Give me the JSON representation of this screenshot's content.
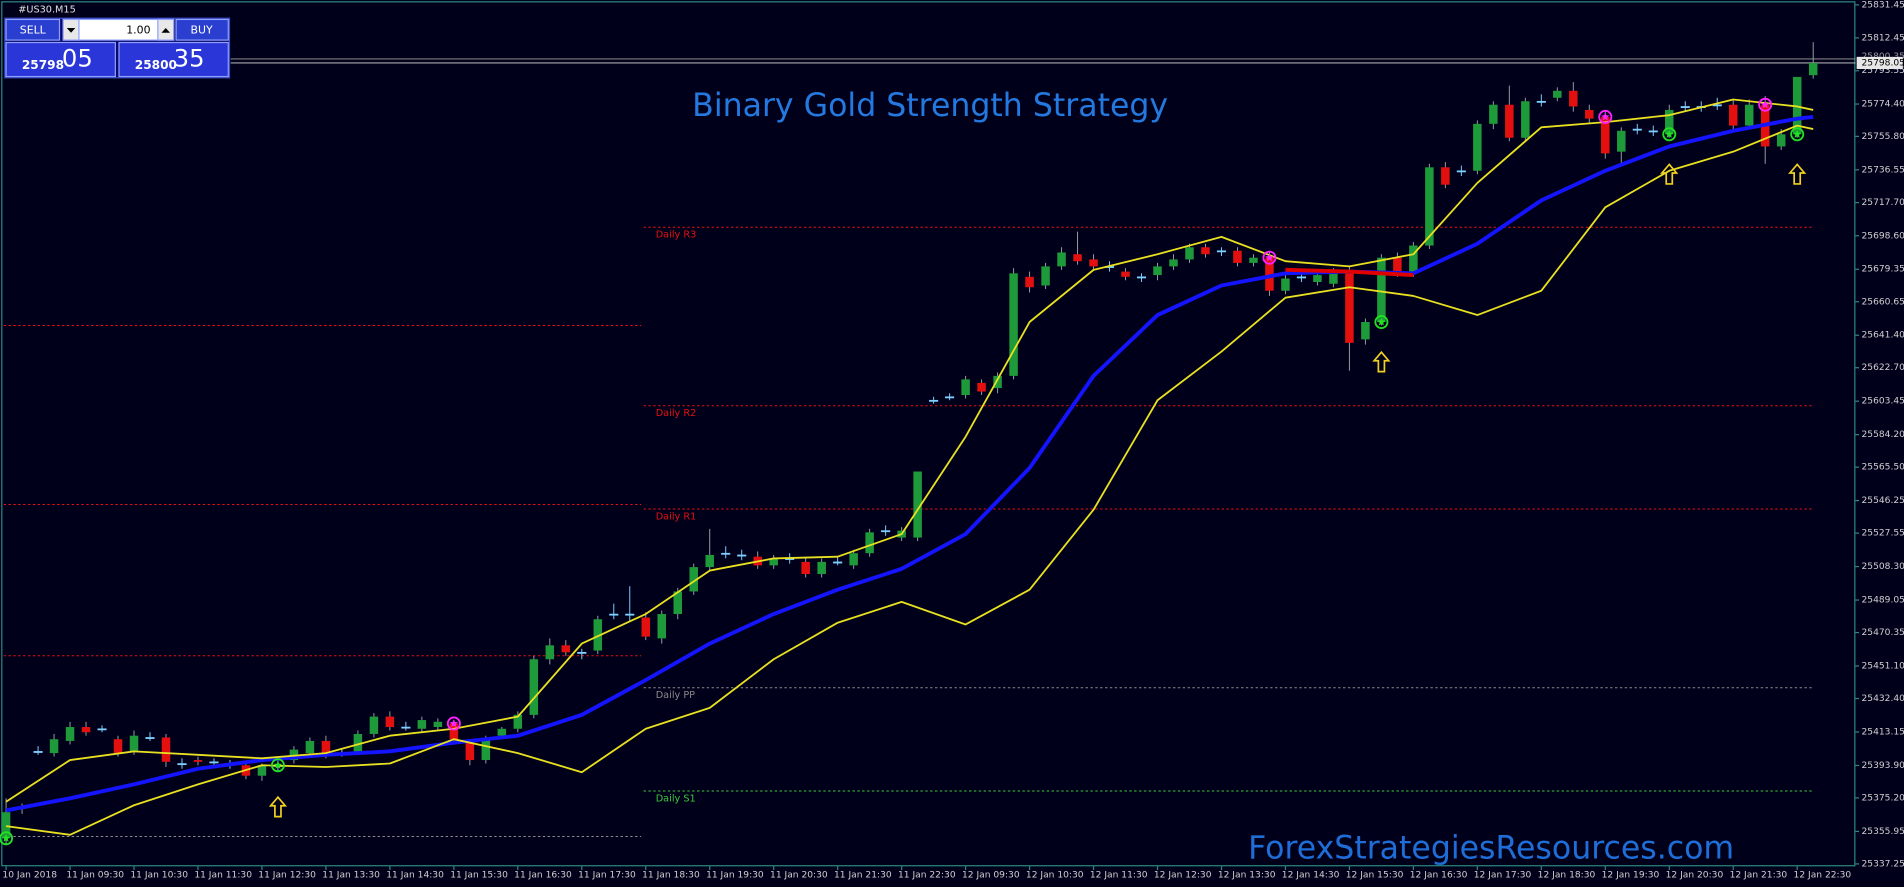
{
  "panel": {
    "symbol": "#US30.M15",
    "sell": "SELL",
    "lots": "1.00",
    "buy": "BUY",
    "bid_main": "25798",
    "bid_pips": "05",
    "ask_main": "25800",
    "ask_pips": "35"
  },
  "chart_data": {
    "type": "candlestick",
    "title": "Binary Gold Strength Strategy",
    "watermark": "ForexStrategiesResources.com",
    "categories": [
      "10 Jan 2018",
      null,
      null,
      null,
      "11 Jan 09:30",
      null,
      null,
      null,
      "11 Jan 10:30",
      null,
      null,
      null,
      "11 Jan 11:30",
      null,
      null,
      null,
      "11 Jan 12:30",
      null,
      null,
      null,
      "11 Jan 13:30",
      null,
      null,
      null,
      "11 Jan 14:30",
      null,
      null,
      null,
      "11 Jan 15:30",
      null,
      null,
      null,
      "11 Jan 16:30",
      null,
      null,
      null,
      "11 Jan 17:30",
      null,
      null,
      null,
      "11 Jan 18:30",
      null,
      null,
      null,
      "11 Jan 19:30",
      null,
      null,
      null,
      "11 Jan 20:30",
      null,
      null,
      null,
      "11 Jan 21:30",
      null,
      null,
      null,
      "11 Jan 22:30",
      null,
      null,
      null,
      "12 Jan 09:30",
      null,
      null,
      null,
      "12 Jan 10:30",
      null,
      null,
      null,
      "12 Jan 11:30",
      null,
      null,
      null,
      "12 Jan 12:30",
      null,
      null,
      null,
      "12 Jan 13:30",
      null,
      null,
      null,
      "12 Jan 14:30",
      null,
      null,
      null,
      "12 Jan 15:30",
      null,
      null,
      null,
      "12 Jan 16:30",
      null,
      null,
      null,
      "12 Jan 17:30",
      null,
      null,
      null,
      "12 Jan 18:30",
      null,
      null,
      null,
      "12 Jan 19:30",
      null,
      null,
      null,
      "12 Jan 20:30",
      null,
      null,
      null,
      "12 Jan 21:30",
      null,
      null,
      null,
      "12 Jan 22:30",
      null
    ],
    "ohlc": [
      [
        25352,
        25375,
        25348,
        25367
      ],
      [
        25369,
        25372,
        25366,
        25370
      ],
      [
        25402,
        25405,
        25400,
        25402
      ],
      [
        25401,
        25412,
        25399,
        25409
      ],
      [
        25408,
        25419,
        25406,
        25416
      ],
      [
        25416,
        25419,
        25411,
        25413
      ],
      [
        25415,
        25417,
        25413,
        25415
      ],
      [
        25409,
        25411,
        25399,
        25401
      ],
      [
        25402,
        25414,
        25400,
        25411
      ],
      [
        25410,
        25413,
        25408,
        25410
      ],
      [
        25410,
        25412,
        25393,
        25396
      ],
      [
        25395,
        25398,
        25392,
        25395
      ],
      [
        25397,
        25399,
        25394,
        25396
      ],
      [
        25396,
        25398,
        25393,
        25396
      ],
      [
        25395,
        25397,
        25392,
        25395
      ],
      [
        25394,
        25396,
        25386,
        25388
      ],
      [
        25388,
        25395,
        25385,
        25394
      ],
      [
        25394,
        25397,
        25391,
        25394
      ],
      [
        25397,
        25405,
        25395,
        25403
      ],
      [
        25401,
        25410,
        25399,
        25408
      ],
      [
        25408,
        25411,
        25398,
        25400
      ],
      [
        25401,
        25403,
        25399,
        25401
      ],
      [
        25402,
        25414,
        25400,
        25412
      ],
      [
        25412,
        25424,
        25410,
        25422
      ],
      [
        25422,
        25425,
        25414,
        25416
      ],
      [
        25416,
        25419,
        25414,
        25416
      ],
      [
        25415,
        25422,
        25413,
        25420
      ],
      [
        25416,
        25421,
        25414,
        25419
      ],
      [
        25418,
        25420,
        25407,
        25409
      ],
      [
        25407,
        25408,
        25394,
        25397
      ],
      [
        25397,
        25411,
        25395,
        25409
      ],
      [
        25411,
        25416,
        25409,
        25415
      ],
      [
        25415,
        25425,
        25413,
        25423
      ],
      [
        25423,
        25457,
        25421,
        25455
      ],
      [
        25455,
        25467,
        25452,
        25463
      ],
      [
        25463,
        25466,
        25457,
        25459
      ],
      [
        25459,
        25461,
        25455,
        25459
      ],
      [
        25460,
        25480,
        25458,
        25478
      ],
      [
        25481,
        25487,
        25478,
        25481
      ],
      [
        25481,
        25497,
        25477,
        25481
      ],
      [
        25479,
        25482,
        25466,
        25468
      ],
      [
        25467,
        25483,
        25464,
        25481
      ],
      [
        25481,
        25496,
        25478,
        25494
      ],
      [
        25494,
        25510,
        25492,
        25508
      ],
      [
        25508,
        25530,
        25506,
        25515
      ],
      [
        25516,
        25520,
        25513,
        25516
      ],
      [
        25515,
        25518,
        25512,
        25515
      ],
      [
        25514,
        25517,
        25507,
        25509
      ],
      [
        25509,
        25515,
        25507,
        25513
      ],
      [
        25513,
        25516,
        25510,
        25513
      ],
      [
        25511,
        25513,
        25502,
        25504
      ],
      [
        25504,
        25513,
        25502,
        25511
      ],
      [
        25511,
        25514,
        25509,
        25511
      ],
      [
        25509,
        25518,
        25507,
        25516
      ],
      [
        25516,
        25530,
        25514,
        25528
      ],
      [
        25529,
        25532,
        25526,
        25529
      ],
      [
        25525,
        25531,
        25523,
        25529
      ],
      [
        25525,
        25563,
        25523,
        25563
      ],
      [
        25604,
        25606,
        25602,
        25604
      ],
      [
        25606,
        25608,
        25604,
        25606
      ],
      [
        25607,
        25618,
        25605,
        25616
      ],
      [
        25614,
        25616,
        25607,
        25609
      ],
      [
        25611,
        25620,
        25608,
        25618
      ],
      [
        25618,
        25680,
        25616,
        25677
      ],
      [
        25675,
        25678,
        25666,
        25669
      ],
      [
        25670,
        25683,
        25668,
        25681
      ],
      [
        25681,
        25692,
        25679,
        25689
      ],
      [
        25688,
        25701,
        25682,
        25684
      ],
      [
        25685,
        25688,
        25679,
        25681
      ],
      [
        25681,
        25684,
        25678,
        25681
      ],
      [
        25678,
        25680,
        25673,
        25675
      ],
      [
        25675,
        25677,
        25672,
        25675
      ],
      [
        25676,
        25683,
        25673,
        25681
      ],
      [
        25681,
        25688,
        25679,
        25685
      ],
      [
        25685,
        25694,
        25683,
        25692
      ],
      [
        25692,
        25694,
        25686,
        25688
      ],
      [
        25690,
        25692,
        25687,
        25690
      ],
      [
        25690,
        25692,
        25681,
        25683
      ],
      [
        25683,
        25688,
        25681,
        25686
      ],
      [
        25686,
        25689,
        25664,
        25667
      ],
      [
        25667,
        25676,
        25665,
        25674
      ],
      [
        25675,
        25678,
        25672,
        25675
      ],
      [
        25672,
        25678,
        25670,
        25676
      ],
      [
        25671,
        25680,
        25669,
        25678
      ],
      [
        25679,
        25681,
        25621,
        25637
      ],
      [
        25639,
        25651,
        25636,
        25649
      ],
      [
        25649,
        25688,
        25647,
        25686
      ],
      [
        25686,
        25689,
        25675,
        25677
      ],
      [
        25677,
        25695,
        25675,
        25693
      ],
      [
        25693,
        25740,
        25691,
        25738
      ],
      [
        25738,
        25741,
        25726,
        25728
      ],
      [
        25736,
        25739,
        25733,
        25736
      ],
      [
        25736,
        25765,
        25734,
        25763
      ],
      [
        25763,
        25776,
        25760,
        25774
      ],
      [
        25774,
        25785,
        25753,
        25755
      ],
      [
        25755,
        25778,
        25753,
        25776
      ],
      [
        25776,
        25780,
        25773,
        25776
      ],
      [
        25778,
        25784,
        25776,
        25782
      ],
      [
        25782,
        25787,
        25770,
        25773
      ],
      [
        25771,
        25774,
        25763,
        25766
      ],
      [
        25767,
        25770,
        25743,
        25746
      ],
      [
        25747,
        25761,
        25740,
        25759
      ],
      [
        25760,
        25763,
        25757,
        25760
      ],
      [
        25759,
        25762,
        25756,
        25759
      ],
      [
        25757,
        25774,
        25755,
        25771
      ],
      [
        25773,
        25776,
        25770,
        25773
      ],
      [
        25773,
        25776,
        25770,
        25773
      ],
      [
        25774,
        25778,
        25771,
        25774
      ],
      [
        25774,
        25777,
        25759,
        25762
      ],
      [
        25762,
        25777,
        25760,
        25774
      ],
      [
        25774,
        25779,
        25740,
        25750
      ],
      [
        25750,
        25760,
        25748,
        25757
      ],
      [
        25757,
        25790,
        25755,
        25790
      ],
      [
        25791,
        25810,
        25789,
        25798
      ]
    ],
    "up_color": "#1e9a3a",
    "down_color": "#e41010",
    "doji_color": "#7fd0ff",
    "series": [
      {
        "color": "#1414ff",
        "x": [
          0,
          4,
          8,
          12,
          16,
          20,
          24,
          28,
          32,
          36,
          40,
          44,
          48,
          52,
          56,
          60,
          64,
          68,
          72,
          76,
          80,
          84,
          88,
          92,
          96,
          100,
          104,
          108,
          112,
          113
        ],
        "values": [
          25368,
          25375,
          25383,
          25392,
          25397,
          25400,
          25402,
          25407,
          25411,
          25423,
          25443,
          25464,
          25481,
          25495,
          25507,
          25527,
          25565,
          25618,
          25653,
          25670,
          25677,
          25678,
          25677,
          25694,
          25719,
          25736,
          25750,
          25759,
          25766,
          25767
        ]
      },
      {
        "color": "#e8e020",
        "x": [
          0,
          4,
          8,
          12,
          16,
          20,
          24,
          28,
          32,
          36,
          40,
          44,
          48,
          52,
          56,
          60,
          64,
          68,
          72,
          76,
          80,
          84,
          88,
          92,
          96,
          100,
          104,
          108,
          112,
          113
        ],
        "values": [
          25373,
          25397,
          25402,
          25400,
          25398,
          25401,
          25411,
          25415,
          25422,
          25464,
          25481,
          25506,
          25513,
          25514,
          25527,
          25583,
          25649,
          25679,
          25688,
          25698,
          25684,
          25681,
          25688,
          25729,
          25761,
          25764,
          25768,
          25777,
          25773,
          25771
        ]
      },
      {
        "color": "#e8e020",
        "x": [
          0,
          4,
          8,
          12,
          16,
          20,
          24,
          28,
          32,
          36,
          40,
          44,
          48,
          52,
          56,
          60,
          64,
          68,
          72,
          76,
          80,
          84,
          88,
          92,
          96,
          100,
          104,
          108,
          112,
          113
        ],
        "values": [
          25359,
          25354,
          25371,
          25383,
          25394,
          25393,
          25395,
          25409,
          25401,
          25390,
          25415,
          25427,
          25455,
          25476,
          25488,
          25475,
          25495,
          25541,
          25604,
          25632,
          25663,
          25669,
          25664,
          25653,
          25667,
          25715,
          25736,
          25747,
          25762,
          25760
        ]
      },
      {
        "color": "#e00000",
        "x": [
          80,
          84,
          88
        ],
        "values": [
          25679,
          25678,
          25676
        ]
      }
    ],
    "levels": [
      {
        "label": "Daily R3",
        "value": 25703.5,
        "color": "#e41010"
      },
      {
        "label": "Daily R2",
        "value": 25600.8,
        "color": "#e41010"
      },
      {
        "label": "Daily R1",
        "value": 25541.4,
        "color": "#e41010"
      },
      {
        "label": "Daily PP",
        "value": 25438.6,
        "color": "#8a8a8a"
      },
      {
        "label": "Daily S1",
        "value": 25379.2,
        "color": "#3cc83c"
      }
    ],
    "prev_levels": [
      {
        "value": 25647,
        "color": "#e41010"
      },
      {
        "value": 25544,
        "color": "#e41010"
      },
      {
        "value": 25457,
        "color": "#e41010"
      },
      {
        "value": 25353,
        "color": "#8a8a8a"
      }
    ],
    "bid": 25798.05,
    "ask": 25800.35,
    "ylim": [
      25335.85,
      25834.25
    ],
    "yticks": [
      25831.45,
      25812.45,
      25793.55,
      {
        "value": 25774.4,
        "label": "25774.40"
      },
      {
        "value": 25755.8,
        "label": "25755.80"
      },
      25736.55,
      {
        "value": 25717.7,
        "label": "25717.70"
      },
      {
        "value": 25698.6,
        "label": "25698.60"
      },
      25679.35,
      25660.65,
      {
        "value": 25641.4,
        "label": "25641.40"
      },
      {
        "value": 25622.7,
        "label": "25622.70"
      },
      25603.45,
      {
        "value": 25584.2,
        "label": "25584.20"
      },
      {
        "value": 25565.5,
        "label": "25565.50"
      },
      25546.25,
      25527.55,
      {
        "value": 25508.3,
        "label": "25508.30"
      },
      25489.05,
      25470.35,
      {
        "value": 25451.1,
        "label": "25451.10"
      },
      {
        "value": 25432.4,
        "label": "25432.40"
      },
      25413.15,
      {
        "value": 25393.9,
        "label": "25393.90"
      },
      {
        "value": 25375.2,
        "label": "25375.20"
      },
      25355.95,
      25337.25
    ],
    "buy_signals": [
      0,
      17,
      86,
      104,
      112
    ],
    "sell_signals": [
      28,
      79,
      100,
      110
    ],
    "arrows": [
      17,
      86,
      104,
      112
    ]
  }
}
